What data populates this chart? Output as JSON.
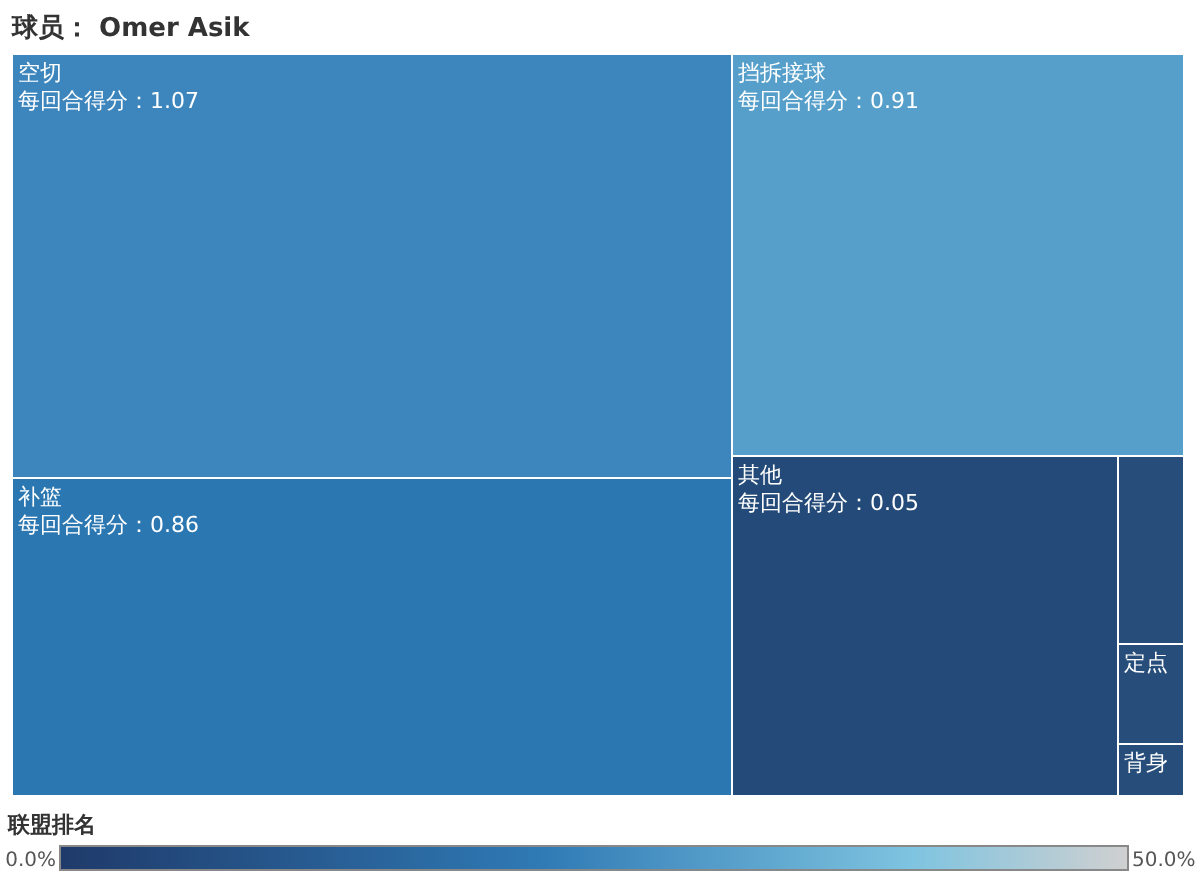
{
  "chart_data": {
    "type": "other",
    "title": "球员： Omer Asik",
    "categories": [
      "空切",
      "补篮",
      "挡拆接球",
      "其他",
      null,
      "定点",
      "背身"
    ],
    "ylabel": "每回合得分：",
    "values": [
      1.07,
      0.86,
      0.91,
      0.05,
      null,
      null,
      null
    ],
    "data_labels": true,
    "colors": [
      "#3d86bd",
      "#2b77b1",
      "#559fca",
      "#234a78",
      "#274d7a",
      "#274d7a",
      "#274d7a"
    ],
    "clabel": "联盟排名",
    "annotations": [
      "0.0%",
      "50.0%"
    ]
  }
}
